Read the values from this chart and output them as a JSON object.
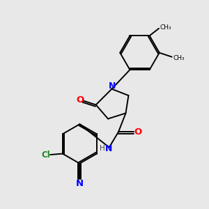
{
  "background_color": "#e8e8e8",
  "atom_colors": {
    "C": "#000000",
    "N": "#0000ff",
    "O": "#ff0000",
    "Cl": "#228822",
    "H": "#444444",
    "bond": "#000000"
  },
  "figsize": [
    3.0,
    3.0
  ],
  "dpi": 100,
  "lw": 1.4
}
